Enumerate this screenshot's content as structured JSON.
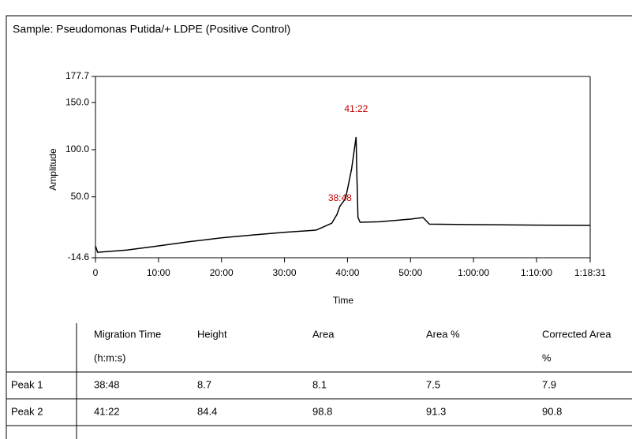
{
  "chart_data": {
    "type": "line",
    "title": "Sample: Pseudomonas Putida/+ LDPE (Positive Control)",
    "x_label": "Time",
    "y_label": "Amplitude",
    "x": [
      0,
      20,
      300,
      600,
      900,
      1200,
      1500,
      1800,
      2100,
      2160,
      2250,
      2300,
      2328,
      2380,
      2400,
      2440,
      2470,
      2482,
      2490,
      2500,
      2520,
      2700,
      3000,
      3120,
      3180,
      3600,
      4200,
      4711
    ],
    "values": [
      -2.1,
      -8.8,
      -6.5,
      -2.1,
      2.5,
      6.5,
      9.6,
      12.3,
      14.7,
      17.5,
      22,
      31.4,
      40,
      48,
      58,
      80,
      104,
      113.3,
      70,
      28,
      23,
      23.5,
      26.4,
      28,
      21,
      20.5,
      20,
      19.7
    ],
    "color": "#000000",
    "xlim": [
      0,
      4711
    ],
    "ylim": [
      -14.6,
      177.7
    ],
    "xticks": [
      0,
      {
        "value": 600,
        "label": "10:00"
      },
      {
        "value": 1200,
        "label": "20:00"
      },
      {
        "value": 1800,
        "label": "30:00"
      },
      {
        "value": 2400,
        "label": "40:00"
      },
      {
        "value": 3000,
        "label": "50:00"
      },
      {
        "value": 3600,
        "label": "1:00:00"
      },
      {
        "value": 4200,
        "label": "1:10:00"
      },
      {
        "value": 4711,
        "label": "1:18:31"
      }
    ],
    "yticks": [
      -14.6,
      {
        "value": 50,
        "label": "50.0"
      },
      {
        "value": 100,
        "label": "100.0"
      },
      {
        "value": 150,
        "label": "150.0"
      },
      177.7
    ],
    "annotations": [
      {
        "x": 2328,
        "label": "38:48"
      },
      {
        "x": 2482,
        "label": "41:22"
      }
    ],
    "annotation_color": "#c00000"
  },
  "table": {
    "columns": [
      {
        "name": "Migration Time",
        "unit": "(h:m:s)"
      },
      {
        "name": "Height"
      },
      {
        "name": "Area"
      },
      {
        "name": "Area %"
      },
      {
        "name": "Corrected Area",
        "unit": "%"
      }
    ],
    "rows": [
      [
        "Peak 1",
        "38:48",
        "8.7",
        "8.1",
        "7.5",
        "7.9"
      ],
      [
        "Peak 2",
        "41:22",
        "84.4",
        "98.8",
        "91.3",
        "90.8"
      ]
    ]
  }
}
